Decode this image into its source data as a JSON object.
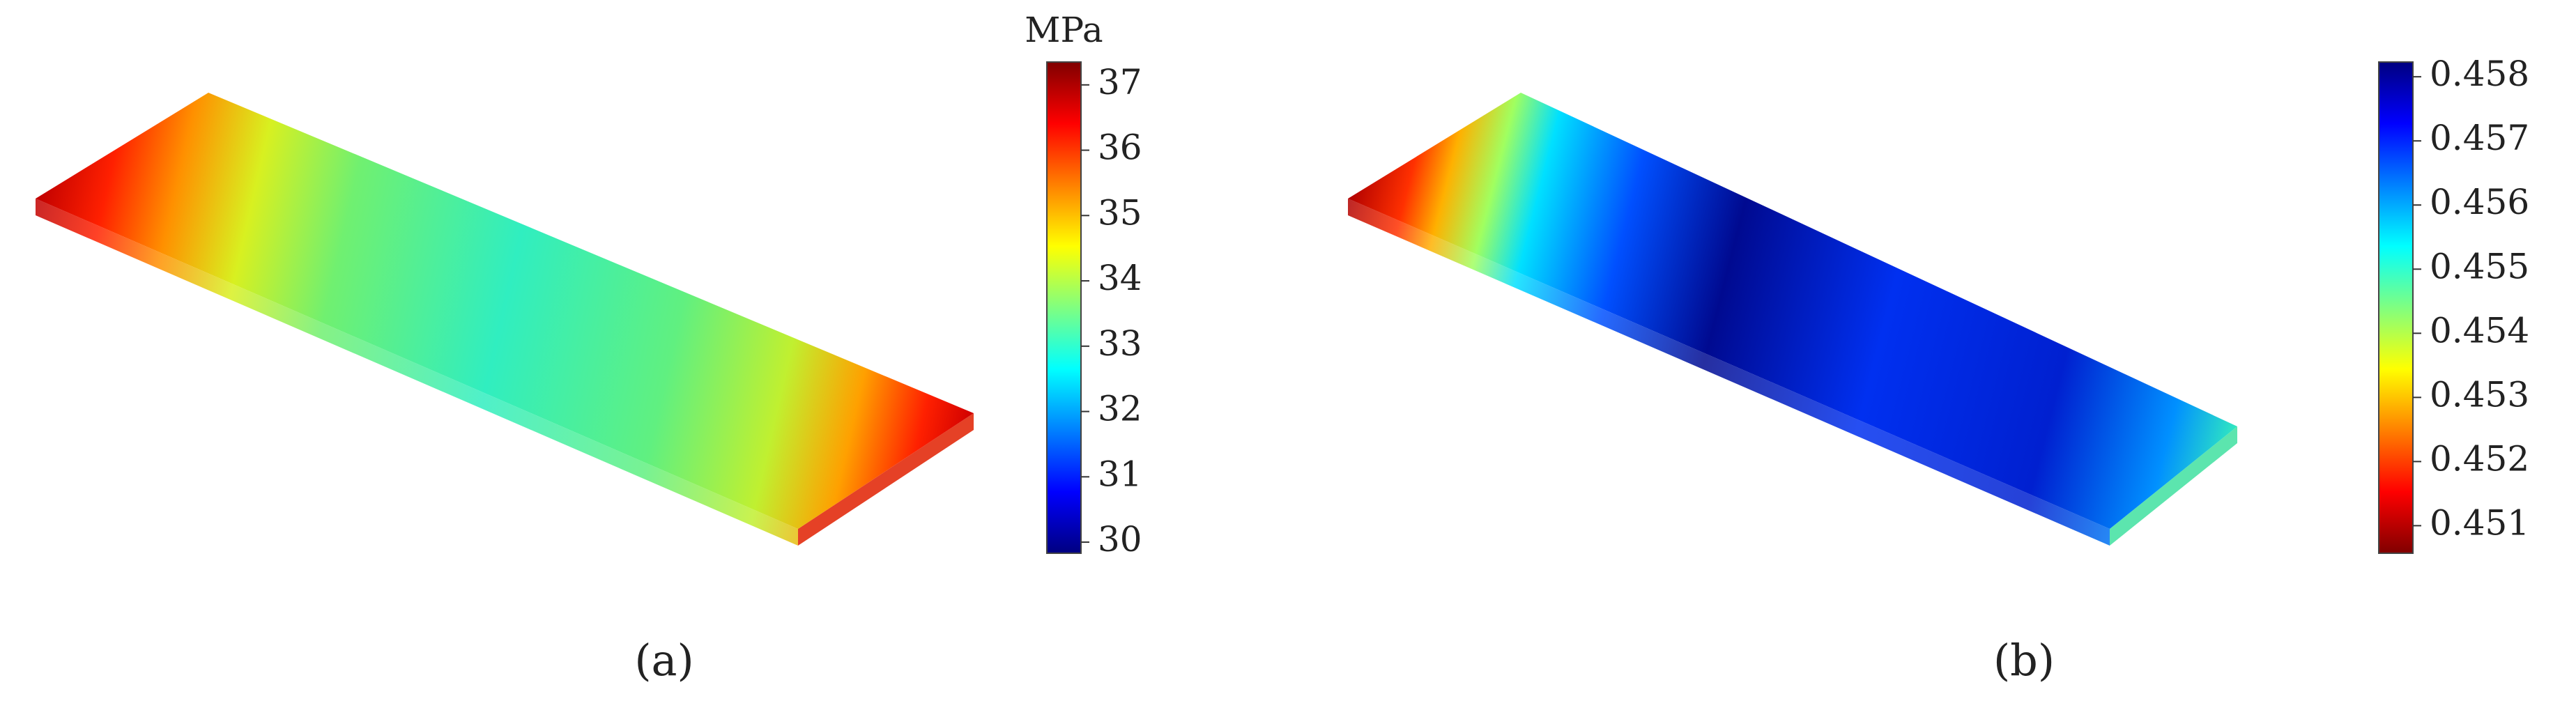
{
  "chart_data": [
    {
      "type": "contour",
      "panel_label": "(a)",
      "colorbar": {
        "label": "MPa",
        "lim": [
          29.83,
          37.35
        ],
        "ticks": [
          30,
          31,
          32,
          33,
          34,
          35,
          36,
          37
        ],
        "colors": [
          "#000080",
          "#0000ff",
          "#0080ff",
          "#00ffff",
          "#80ff80",
          "#ffff00",
          "#ff8000",
          "#ff0000",
          "#800000"
        ]
      }
    },
    {
      "type": "contour",
      "panel_label": "(b)",
      "colorbar": {
        "lim": [
          0.45057,
          0.45823
        ],
        "ticks": [
          0.451,
          0.452,
          0.453,
          0.454,
          0.455,
          0.456,
          0.457,
          0.458
        ],
        "colors": [
          "#800000",
          "#ff0000",
          "#ff8000",
          "#ffff00",
          "#80ff80",
          "#00ffff",
          "#0080ff",
          "#0000ff",
          "#000080"
        ]
      }
    }
  ]
}
